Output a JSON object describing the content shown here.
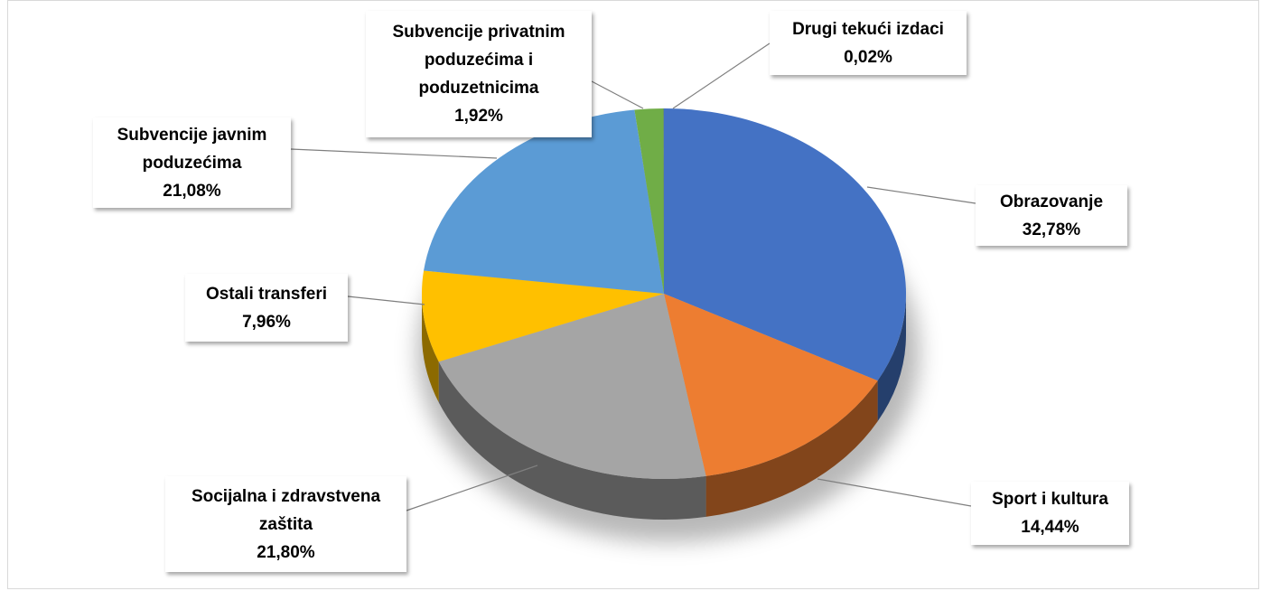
{
  "chart_data": {
    "type": "pie",
    "categories": [
      "Obrazovanje",
      "Sport i kultura",
      "Socijalna i zdravstvena zaštita",
      "Ostali transferi",
      "Subvencije javnim poduzećima",
      "Subvencije privatnim poduzećima i poduzetnicima",
      "Drugi tekući izdaci"
    ],
    "values": [
      32.78,
      14.44,
      21.8,
      7.96,
      21.08,
      1.92,
      0.02
    ],
    "value_labels": [
      "32,78%",
      "14,44%",
      "21,80%",
      "7,96%",
      "21,08%",
      "1,92%",
      "0,02%"
    ],
    "colors": [
      "#4472c4",
      "#ed7d31",
      "#a5a5a5",
      "#ffc000",
      "#5b9bd5",
      "#70ad47",
      "#264478"
    ]
  }
}
